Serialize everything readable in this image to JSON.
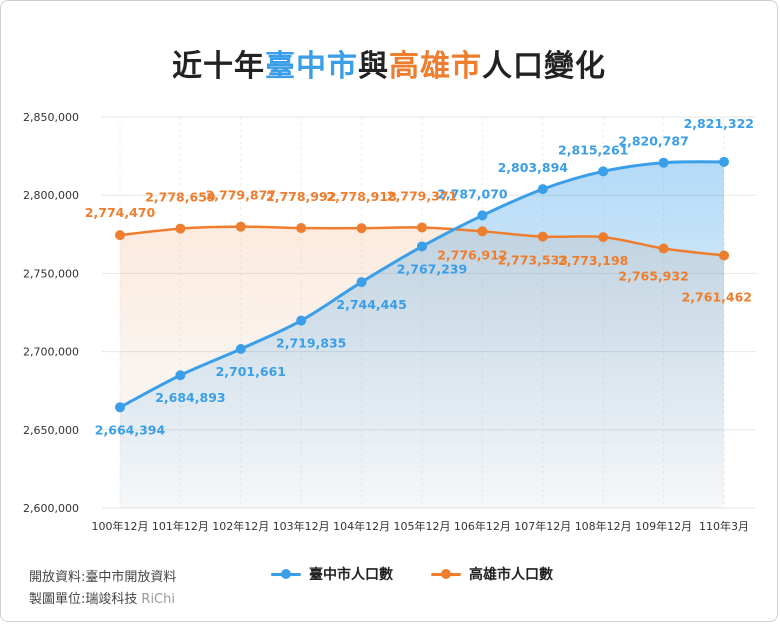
{
  "title": {
    "part1": "近十年",
    "city1": "臺中市",
    "part2": "與",
    "city2": "高雄市",
    "part3": "人口變化"
  },
  "colors": {
    "taichung": "#3a9ee8",
    "kaohsiung": "#ee7e2e",
    "grid": "#e6e6e6"
  },
  "chart_data": {
    "type": "area",
    "categories": [
      "100年12月",
      "101年12月",
      "102年12月",
      "103年12月",
      "104年12月",
      "105年12月",
      "106年12月",
      "107年12月",
      "108年12月",
      "109年12月",
      "110年3月"
    ],
    "series": [
      {
        "name": "臺中市人口數",
        "values": [
          2664394,
          2684893,
          2701661,
          2719835,
          2744445,
          2767239,
          2787070,
          2803894,
          2815261,
          2820787,
          2821322
        ],
        "labels": [
          "2,664,394",
          "2,684,893",
          "2,701,661",
          "2,719,835",
          "2,744,445",
          "2,767,239",
          "2,787,070",
          "2,803,894",
          "2,815,261",
          "2,820,787",
          "2,821,322"
        ]
      },
      {
        "name": "高雄市人口數",
        "values": [
          2774470,
          2778659,
          2779877,
          2778992,
          2778918,
          2779371,
          2776912,
          2773533,
          2773198,
          2765932,
          2761462
        ],
        "labels": [
          "2,774,470",
          "2,778,659",
          "2,779,877",
          "2,778,992",
          "2,778,918",
          "2,779,371",
          "2,776,912",
          "2,773,533",
          "2,773,198",
          "2,765,932",
          "2,761,462"
        ]
      }
    ],
    "ylim": [
      2600000,
      2850000
    ],
    "yticks": [
      2600000,
      2650000,
      2700000,
      2750000,
      2800000,
      2850000
    ],
    "ytick_labels": [
      "2,600,000",
      "2,650,000",
      "2,700,000",
      "2,750,000",
      "2,800,000",
      "2,850,000"
    ],
    "grid": true,
    "legend_position": "bottom"
  },
  "legend": {
    "taichung": "臺中市人口數",
    "kaohsiung": "高雄市人口數"
  },
  "source": {
    "data_label": "開放資料:",
    "data_value": "臺中市開放資料",
    "maker_label": "製圖單位:",
    "maker_value": "瑞竣科技",
    "brand": "RiChi"
  }
}
